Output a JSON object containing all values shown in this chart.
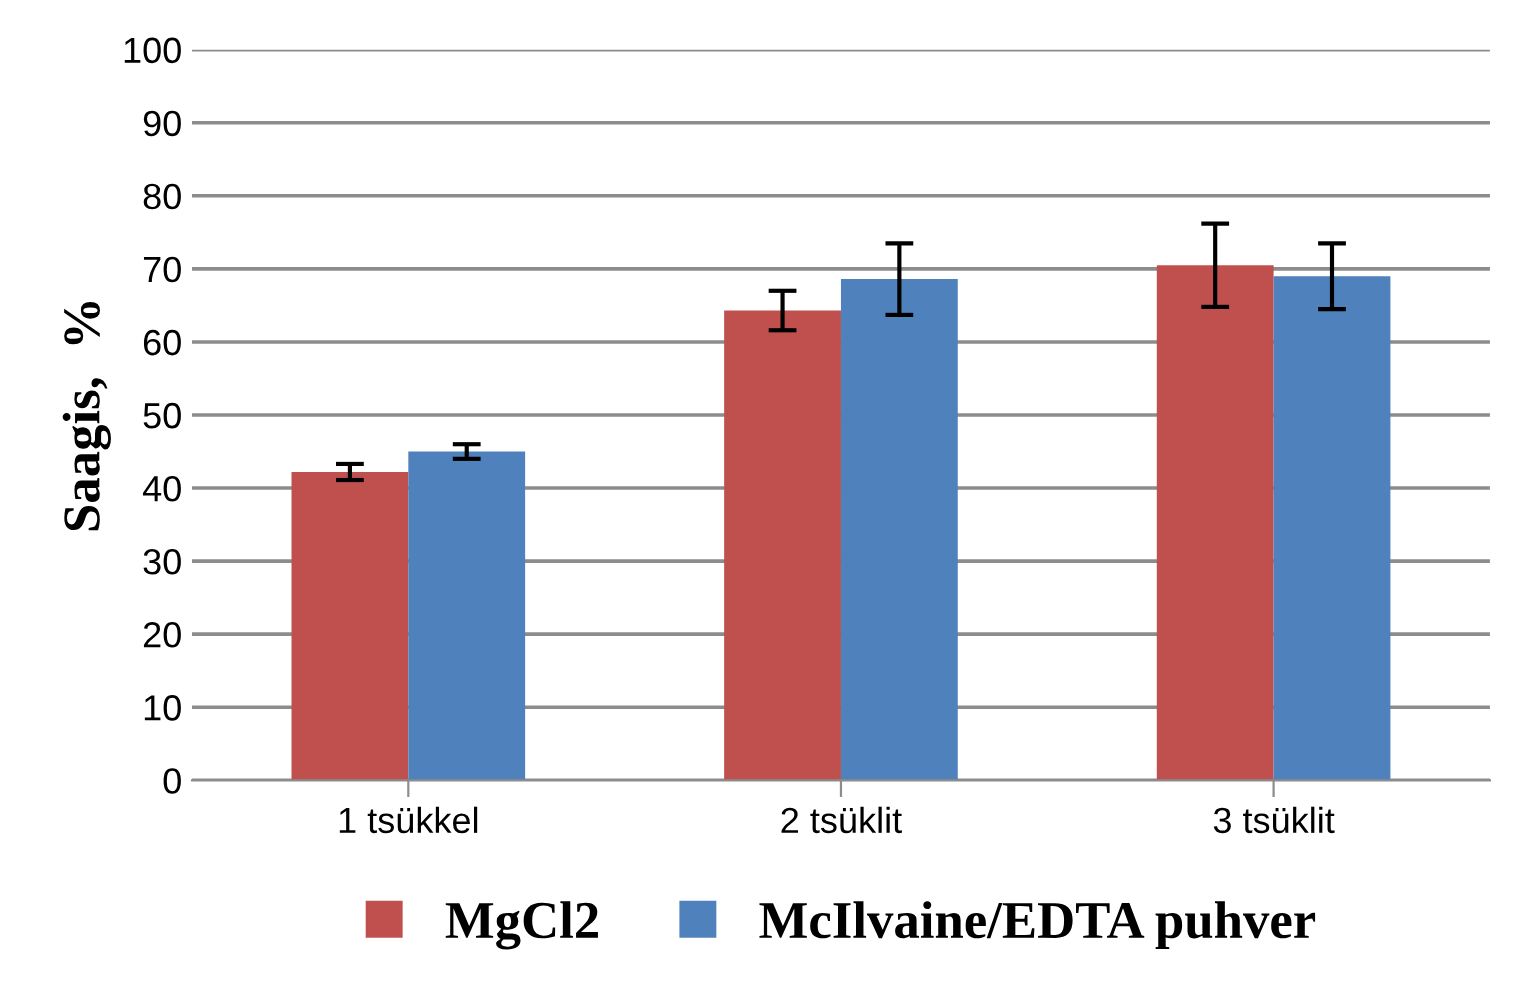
{
  "chart_data": {
    "type": "bar",
    "ylabel": "Saagis,  %",
    "categories": [
      "1 tsükkel",
      "2 tsüklit",
      "3 tsüklit"
    ],
    "series": [
      {
        "name": "MgCl2",
        "color": "#c0504d",
        "values": [
          42.2,
          64.3,
          70.5
        ],
        "errors": [
          1.1,
          2.7,
          5.7
        ]
      },
      {
        "name": "McIlvaine/EDTA puhver",
        "color": "#4f81bd",
        "values": [
          45,
          68.6,
          69
        ],
        "errors": [
          1,
          4.9,
          4.5
        ]
      }
    ],
    "ylim": [
      0,
      100
    ],
    "yticks": [
      0,
      10,
      20,
      30,
      40,
      50,
      60,
      70,
      80,
      90,
      100
    ],
    "grid": "y",
    "legend": "bottom"
  }
}
